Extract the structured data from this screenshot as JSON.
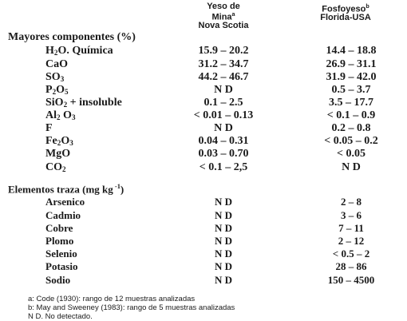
{
  "header": {
    "col1": {
      "line1": "Yeso de",
      "line2": "Mina",
      "line2_sup": "a",
      "line3": "Nova Scotia"
    },
    "col2": {
      "line1": "Fosfoyeso",
      "line1_sup": "b",
      "line2": "Florida-USA"
    }
  },
  "major": {
    "title": "Mayores componentes  (%)",
    "rows": [
      {
        "label_pre": "H",
        "label_sub": "2",
        "label_post": "O. Química",
        "v1": "15.9 – 20.2",
        "v2": "14.4 – 18.8"
      },
      {
        "label_pre": "CaO",
        "label_sub": "",
        "label_post": "",
        "v1": "31.2 – 34.7",
        "v2": "26.9 – 31.1"
      },
      {
        "label_pre": "SO",
        "label_sub": "3",
        "label_post": "",
        "v1": "44.2 – 46.7",
        "v2": "31.9 – 42.0"
      },
      {
        "label_pre": "P",
        "label_sub": "2",
        "label_post": "O",
        "label_sub2": "5",
        "v1": "N D",
        "v2": "0.5 – 3.7"
      },
      {
        "label_pre": "SiO",
        "label_sub": "2",
        "label_post": "  + insoluble",
        "v1": "0.1 – 2.5",
        "v2": "3.5 – 17.7"
      },
      {
        "label_pre": "Al",
        "label_sub": "2",
        "label_post": " O",
        "label_sub2": "3",
        "v1": "< 0.01 – 0.13",
        "v2": "< 0.1 – 0.9"
      },
      {
        "label_pre": "F",
        "label_sub": "",
        "label_post": "",
        "v1": "N D",
        "v2": "0.2 – 0.8"
      },
      {
        "label_pre": "Fe",
        "label_sub": "2",
        "label_post": "O",
        "label_sub2": "3",
        "v1": "0.04 – 0.31",
        "v2": "< 0.05 – 0.2"
      },
      {
        "label_pre": "MgO",
        "label_sub": "",
        "label_post": "",
        "v1": "0.03 – 0.70",
        "v2": "< 0.05"
      },
      {
        "label_pre": "CO",
        "label_sub": "2",
        "label_post": "",
        "v1": "< 0.1 – 2,5",
        "v2": "N D"
      }
    ]
  },
  "trace": {
    "title_pre": "Elementos traza (mg kg",
    "title_sup": " -1",
    "title_post": ")",
    "rows": [
      {
        "label": "Arsenico",
        "v1": "N D",
        "v2": "2 – 8"
      },
      {
        "label": "Cadmio",
        "v1": "N D",
        "v2": "3 – 6"
      },
      {
        "label": "Cobre",
        "v1": "N D",
        "v2": "7 – 11"
      },
      {
        "label": "Plomo",
        "v1": "N D",
        "v2": "2 – 12"
      },
      {
        "label": "Selenio",
        "v1": "N D",
        "v2": "< 0.5 – 2"
      },
      {
        "label": "Potasio",
        "v1": "N D",
        "v2": "28 – 86"
      },
      {
        "label": "Sodio",
        "v1": "N D",
        "v2": "150 – 4500"
      }
    ]
  },
  "notes": [
    "a:  Code  (1930): rango de 12 muestras analizadas",
    "b:  May and Sweeney (1983): rango de 5 muestras analizadas",
    "N D.  No detectado."
  ]
}
